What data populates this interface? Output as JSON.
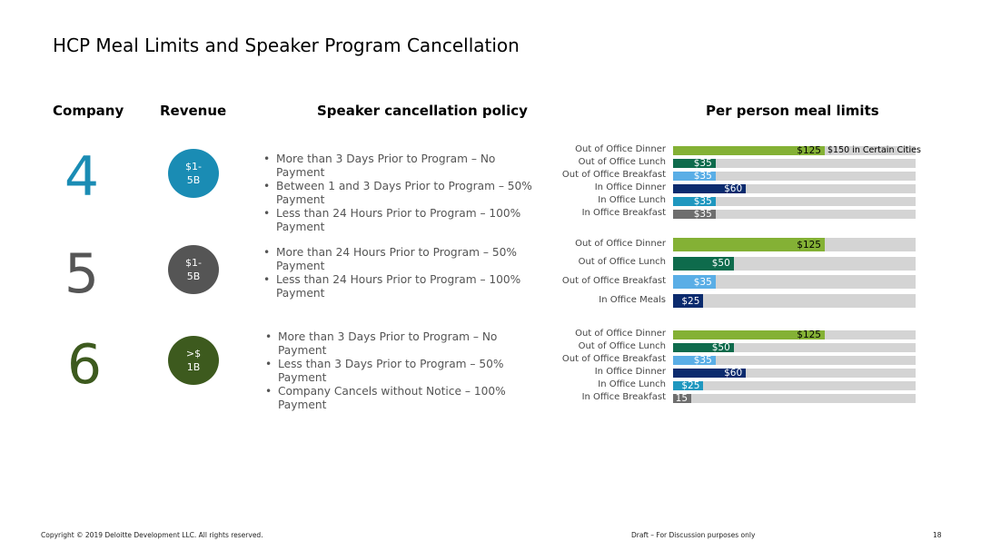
{
  "title": "HCP Meal Limits and Speaker Program Cancellation",
  "headers": {
    "company": "Company",
    "revenue": "Revenue",
    "policy": "Speaker cancellation policy",
    "meals": "Per person meal limits"
  },
  "colors": {
    "c4": "#1a8cb4",
    "c5": "#555555",
    "c6": "#3d5a1e",
    "olive": "#84b135",
    "darkgreen": "#0e6b4c",
    "lightblue": "#5aaee6",
    "navy": "#0b2b6e",
    "teal": "#1f97bf",
    "gray": "#6e6e6e"
  },
  "rows": [
    {
      "company": "4",
      "revenue": "$1-\n5B",
      "policy": [
        "More than 3 Days Prior to Program – No Payment",
        "Between 1 and 3 Days Prior to Program – 50% Payment",
        "Less than 24 Hours Prior to Program – 100% Payment"
      ],
      "meals": [
        {
          "label": "Out of Office Dinner",
          "value": "$125",
          "amount": 125,
          "color": "olive",
          "note": "$150 in Certain Cities"
        },
        {
          "label": "Out of Office Lunch",
          "value": "$35",
          "amount": 35,
          "color": "darkgreen"
        },
        {
          "label": "Out of Office Breakfast",
          "value": "$35",
          "amount": 35,
          "color": "lightblue"
        },
        {
          "label": "In Office Dinner",
          "value": "$60",
          "amount": 60,
          "color": "navy"
        },
        {
          "label": "In Office Lunch",
          "value": "$35",
          "amount": 35,
          "color": "teal"
        },
        {
          "label": "In Office Breakfast",
          "value": "$35",
          "amount": 35,
          "color": "gray"
        }
      ]
    },
    {
      "company": "5",
      "revenue": "$1-\n5B",
      "policy": [
        "More than 24 Hours Prior to Program – 50% Payment",
        "Less than 24 Hours Prior to Program – 100% Payment"
      ],
      "meals": [
        {
          "label": "Out of Office Dinner",
          "value": "$125",
          "amount": 125,
          "color": "olive"
        },
        {
          "label": "Out of Office Lunch",
          "value": "$50",
          "amount": 50,
          "color": "darkgreen"
        },
        {
          "label": "Out of Office Breakfast",
          "value": "$35",
          "amount": 35,
          "color": "lightblue"
        },
        {
          "label": "In Office Meals",
          "value": "$25",
          "amount": 25,
          "color": "navy"
        }
      ]
    },
    {
      "company": "6",
      "revenue": ">$\n1B",
      "policy": [
        "More than 3 Days Prior to Program – No Payment",
        "Less than 3 Days Prior to Program – 50% Payment",
        "Company Cancels without Notice – 100% Payment"
      ],
      "meals": [
        {
          "label": "Out of Office Dinner",
          "value": "$125",
          "amount": 125,
          "color": "olive"
        },
        {
          "label": "Out of Office Lunch",
          "value": "$50",
          "amount": 50,
          "color": "darkgreen"
        },
        {
          "label": "Out of Office Breakfast",
          "value": "$35",
          "amount": 35,
          "color": "lightblue"
        },
        {
          "label": "In Office Dinner",
          "value": "$60",
          "amount": 60,
          "color": "navy"
        },
        {
          "label": "In Office Lunch",
          "value": "$25",
          "amount": 25,
          "color": "teal"
        },
        {
          "label": "In Office Breakfast",
          "value": "15",
          "amount": 15,
          "color": "gray"
        }
      ]
    }
  ],
  "footer": {
    "copyright": "Copyright © 2019 Deloitte Development LLC. All rights reserved.",
    "draft": "Draft – For Discussion purposes only",
    "page": "18"
  }
}
